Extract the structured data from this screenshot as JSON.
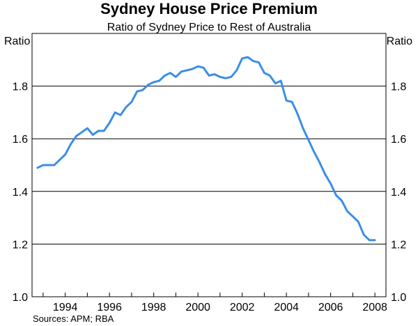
{
  "chart_data": {
    "type": "line",
    "title": "Sydney House Price Premium",
    "subtitle": "Ratio of Sydney Price to Rest of Australia",
    "ylabel_left": "Ratio",
    "ylabel_right": "Ratio",
    "ylim": [
      1.0,
      2.0
    ],
    "yticks": [
      "1.0",
      "1.2",
      "1.4",
      "1.6",
      "1.8"
    ],
    "xlim": [
      1992.5,
      2008.5
    ],
    "xticks": [
      "1994",
      "1996",
      "1998",
      "2000",
      "2002",
      "2004",
      "2006",
      "2008"
    ],
    "grid": true,
    "series": [
      {
        "color": "#3a8ee6",
        "x": [
          1992.75,
          1993.0,
          1993.25,
          1993.5,
          1993.75,
          1994.0,
          1994.25,
          1994.5,
          1994.75,
          1995.0,
          1995.25,
          1995.5,
          1995.75,
          1996.0,
          1996.25,
          1996.5,
          1996.75,
          1997.0,
          1997.25,
          1997.5,
          1997.75,
          1998.0,
          1998.25,
          1998.5,
          1998.75,
          1999.0,
          1999.25,
          1999.5,
          1999.75,
          2000.0,
          2000.25,
          2000.5,
          2000.75,
          2001.0,
          2001.25,
          2001.5,
          2001.75,
          2002.0,
          2002.25,
          2002.5,
          2002.75,
          2003.0,
          2003.25,
          2003.5,
          2003.75,
          2004.0,
          2004.25,
          2004.5,
          2004.75,
          2005.0,
          2005.25,
          2005.5,
          2005.75,
          2006.0,
          2006.25,
          2006.5,
          2006.75,
          2007.0,
          2007.25,
          2007.5,
          2007.75,
          2008.0
        ],
        "values": [
          1.49,
          1.5,
          1.5,
          1.5,
          1.52,
          1.54,
          1.58,
          1.61,
          1.625,
          1.64,
          1.615,
          1.63,
          1.63,
          1.66,
          1.7,
          1.69,
          1.72,
          1.74,
          1.78,
          1.785,
          1.805,
          1.815,
          1.82,
          1.84,
          1.85,
          1.835,
          1.855,
          1.86,
          1.865,
          1.875,
          1.87,
          1.84,
          1.845,
          1.835,
          1.83,
          1.835,
          1.86,
          1.905,
          1.91,
          1.895,
          1.89,
          1.85,
          1.84,
          1.81,
          1.82,
          1.745,
          1.74,
          1.695,
          1.64,
          1.595,
          1.55,
          1.51,
          1.465,
          1.43,
          1.385,
          1.365,
          1.325,
          1.305,
          1.285,
          1.235,
          1.215,
          1.215
        ]
      }
    ]
  },
  "source": "Sources: APM; RBA"
}
